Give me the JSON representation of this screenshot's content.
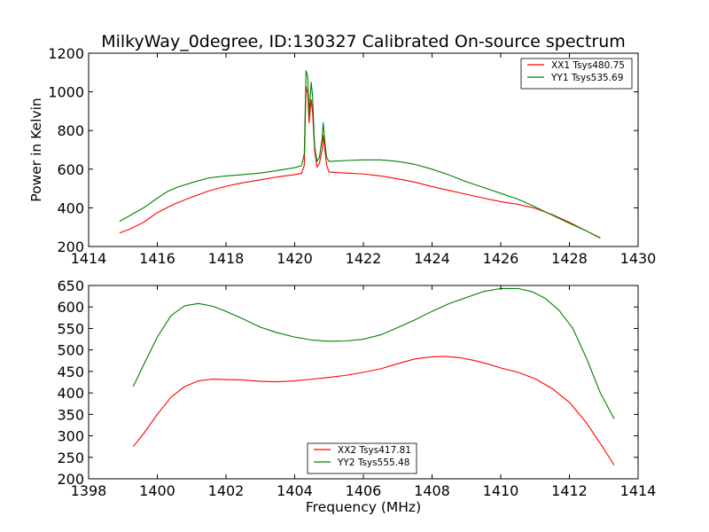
{
  "chart_data": [
    {
      "type": "line",
      "title": "MilkyWay_0degree, ID:130327 Calibrated On-source spectrum",
      "xlabel": "",
      "ylabel": "Power in Kelvin",
      "xlim": [
        1414,
        1430
      ],
      "ylim": [
        200,
        1200
      ],
      "xticks": [
        1414,
        1416,
        1418,
        1420,
        1422,
        1424,
        1426,
        1428,
        1430
      ],
      "yticks": [
        200,
        400,
        600,
        800,
        1000,
        1200
      ],
      "grid": false,
      "legend_position": "top-right",
      "series": [
        {
          "name": "XX1 Tsys480.75",
          "color": "#ff0000",
          "points": [
            [
              1414.9,
              270
            ],
            [
              1415.2,
              290
            ],
            [
              1415.6,
              325
            ],
            [
              1416.0,
              375
            ],
            [
              1416.5,
              420
            ],
            [
              1417.0,
              455
            ],
            [
              1417.5,
              488
            ],
            [
              1418.0,
              512
            ],
            [
              1418.5,
              530
            ],
            [
              1419.0,
              545
            ],
            [
              1419.5,
              560
            ],
            [
              1420.0,
              572
            ],
            [
              1420.2,
              578
            ],
            [
              1420.28,
              620
            ],
            [
              1420.33,
              1030
            ],
            [
              1420.38,
              990
            ],
            [
              1420.42,
              840
            ],
            [
              1420.48,
              960
            ],
            [
              1420.52,
              900
            ],
            [
              1420.58,
              700
            ],
            [
              1420.65,
              610
            ],
            [
              1420.72,
              630
            ],
            [
              1420.8,
              700
            ],
            [
              1420.83,
              775
            ],
            [
              1420.88,
              700
            ],
            [
              1420.93,
              620
            ],
            [
              1421.0,
              585
            ],
            [
              1421.5,
              580
            ],
            [
              1422.0,
              575
            ],
            [
              1422.5,
              565
            ],
            [
              1423.0,
              550
            ],
            [
              1423.5,
              533
            ],
            [
              1424.0,
              510
            ],
            [
              1424.5,
              490
            ],
            [
              1425.0,
              470
            ],
            [
              1425.5,
              450
            ],
            [
              1426.0,
              432
            ],
            [
              1426.5,
              418
            ],
            [
              1427.0,
              398
            ],
            [
              1427.5,
              365
            ],
            [
              1428.0,
              325
            ],
            [
              1428.5,
              280
            ],
            [
              1428.9,
              245
            ]
          ]
        },
        {
          "name": "YY1 Tsys535.69",
          "color": "#008000",
          "points": [
            [
              1414.9,
              330
            ],
            [
              1415.2,
              360
            ],
            [
              1415.6,
              400
            ],
            [
              1416.0,
              450
            ],
            [
              1416.3,
              485
            ],
            [
              1416.6,
              508
            ],
            [
              1417.0,
              530
            ],
            [
              1417.5,
              555
            ],
            [
              1418.0,
              565
            ],
            [
              1418.5,
              572
            ],
            [
              1419.0,
              580
            ],
            [
              1419.5,
              593
            ],
            [
              1420.0,
              608
            ],
            [
              1420.2,
              618
            ],
            [
              1420.28,
              680
            ],
            [
              1420.33,
              1110
            ],
            [
              1420.38,
              1080
            ],
            [
              1420.42,
              880
            ],
            [
              1420.48,
              1050
            ],
            [
              1420.52,
              980
            ],
            [
              1420.58,
              720
            ],
            [
              1420.65,
              640
            ],
            [
              1420.72,
              660
            ],
            [
              1420.8,
              760
            ],
            [
              1420.83,
              840
            ],
            [
              1420.88,
              740
            ],
            [
              1420.93,
              660
            ],
            [
              1421.0,
              640
            ],
            [
              1421.5,
              645
            ],
            [
              1422.0,
              648
            ],
            [
              1422.5,
              648
            ],
            [
              1423.0,
              640
            ],
            [
              1423.5,
              625
            ],
            [
              1424.0,
              600
            ],
            [
              1424.5,
              570
            ],
            [
              1425.0,
              535
            ],
            [
              1425.5,
              505
            ],
            [
              1426.0,
              475
            ],
            [
              1426.5,
              445
            ],
            [
              1427.0,
              405
            ],
            [
              1427.5,
              362
            ],
            [
              1428.0,
              320
            ],
            [
              1428.5,
              280
            ],
            [
              1428.9,
              243
            ]
          ]
        }
      ]
    },
    {
      "type": "line",
      "title": "",
      "xlabel": "Frequency (MHz)",
      "ylabel": "",
      "xlim": [
        1398,
        1414
      ],
      "ylim": [
        200,
        650
      ],
      "xticks": [
        1398,
        1400,
        1402,
        1404,
        1406,
        1408,
        1410,
        1412,
        1414
      ],
      "yticks": [
        200,
        250,
        300,
        350,
        400,
        450,
        500,
        550,
        600,
        650
      ],
      "grid": false,
      "legend_position": "bottom-center",
      "series": [
        {
          "name": "XX2 Tsys417.81",
          "color": "#ff0000",
          "points": [
            [
              1399.3,
              275
            ],
            [
              1399.6,
              305
            ],
            [
              1400.0,
              350
            ],
            [
              1400.4,
              390
            ],
            [
              1400.8,
              415
            ],
            [
              1401.2,
              428
            ],
            [
              1401.6,
              432
            ],
            [
              1402.0,
              431
            ],
            [
              1402.5,
              430
            ],
            [
              1403.0,
              427
            ],
            [
              1403.5,
              426
            ],
            [
              1404.0,
              428
            ],
            [
              1404.5,
              432
            ],
            [
              1405.0,
              436
            ],
            [
              1405.5,
              441
            ],
            [
              1406.0,
              448
            ],
            [
              1406.5,
              456
            ],
            [
              1407.0,
              468
            ],
            [
              1407.5,
              479
            ],
            [
              1408.0,
              484
            ],
            [
              1408.4,
              485
            ],
            [
              1408.8,
              482
            ],
            [
              1409.2,
              476
            ],
            [
              1409.6,
              468
            ],
            [
              1410.0,
              458
            ],
            [
              1410.5,
              448
            ],
            [
              1411.0,
              433
            ],
            [
              1411.5,
              410
            ],
            [
              1412.0,
              378
            ],
            [
              1412.5,
              330
            ],
            [
              1413.0,
              270
            ],
            [
              1413.3,
              232
            ]
          ]
        },
        {
          "name": "YY2 Tsys555.48",
          "color": "#008000",
          "points": [
            [
              1399.3,
              415
            ],
            [
              1399.6,
              465
            ],
            [
              1400.0,
              530
            ],
            [
              1400.4,
              580
            ],
            [
              1400.8,
              603
            ],
            [
              1401.2,
              608
            ],
            [
              1401.6,
              602
            ],
            [
              1402.0,
              590
            ],
            [
              1402.5,
              572
            ],
            [
              1403.0,
              553
            ],
            [
              1403.5,
              540
            ],
            [
              1404.0,
              530
            ],
            [
              1404.5,
              523
            ],
            [
              1405.0,
              520
            ],
            [
              1405.5,
              521
            ],
            [
              1406.0,
              525
            ],
            [
              1406.5,
              535
            ],
            [
              1407.0,
              552
            ],
            [
              1407.5,
              570
            ],
            [
              1408.0,
              590
            ],
            [
              1408.5,
              608
            ],
            [
              1409.0,
              622
            ],
            [
              1409.5,
              636
            ],
            [
              1410.0,
              643
            ],
            [
              1410.5,
              643
            ],
            [
              1410.9,
              636
            ],
            [
              1411.3,
              620
            ],
            [
              1411.7,
              592
            ],
            [
              1412.1,
              550
            ],
            [
              1412.5,
              480
            ],
            [
              1412.9,
              400
            ],
            [
              1413.3,
              340
            ]
          ]
        }
      ]
    }
  ]
}
